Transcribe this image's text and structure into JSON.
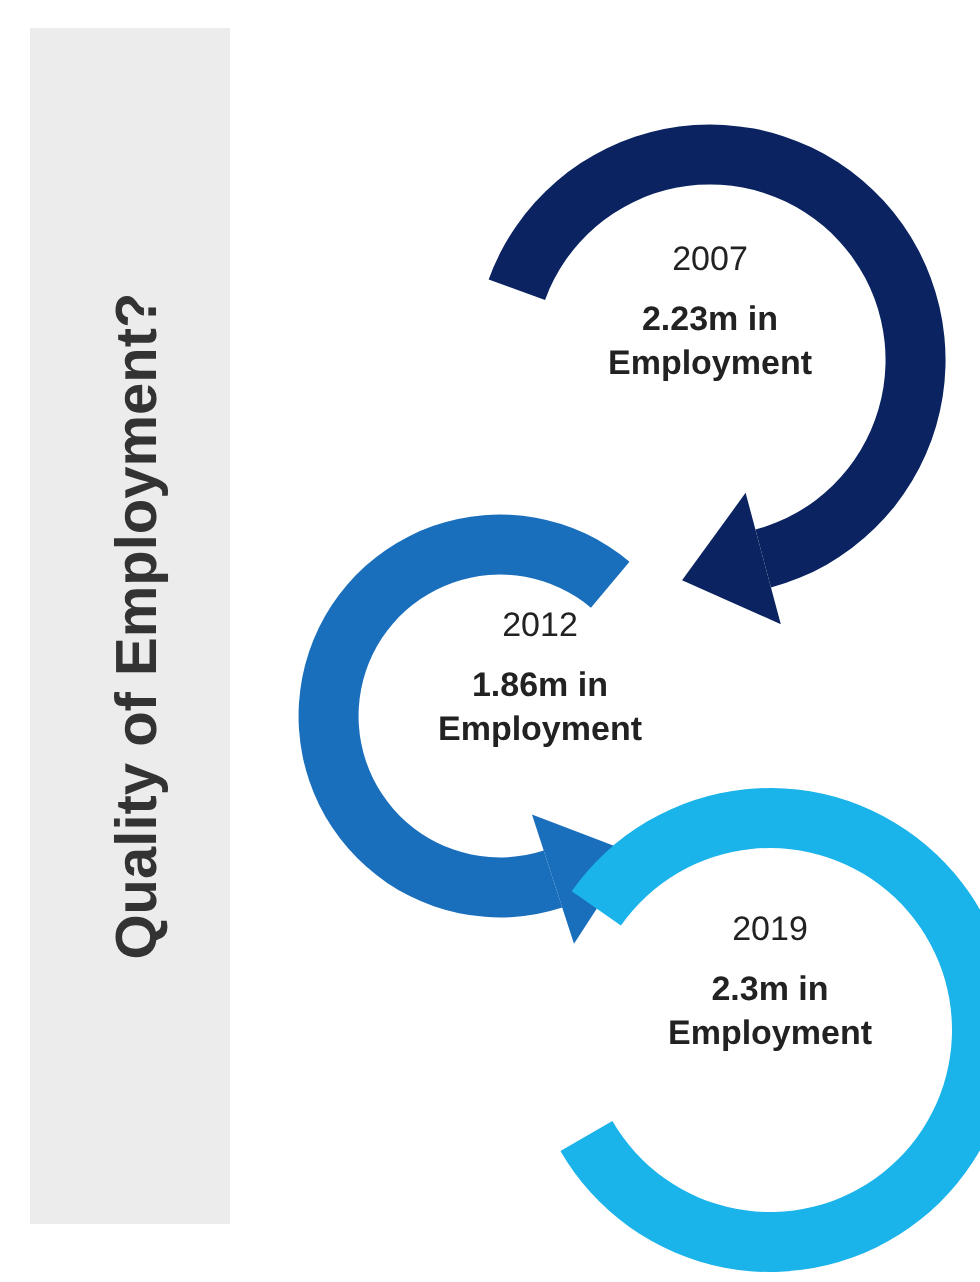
{
  "chart_data": {
    "type": "other",
    "title": "Quality of Employment?",
    "categories": [
      "2007",
      "2012",
      "2019"
    ],
    "values": [
      2.23,
      1.86,
      2.3
    ],
    "value_labels": [
      "2.23m in Employment",
      "1.86m in Employment",
      "2.3m in Employment"
    ],
    "colors": [
      "#0b2461",
      "#1a6fbd",
      "#1ab3ea"
    ]
  }
}
